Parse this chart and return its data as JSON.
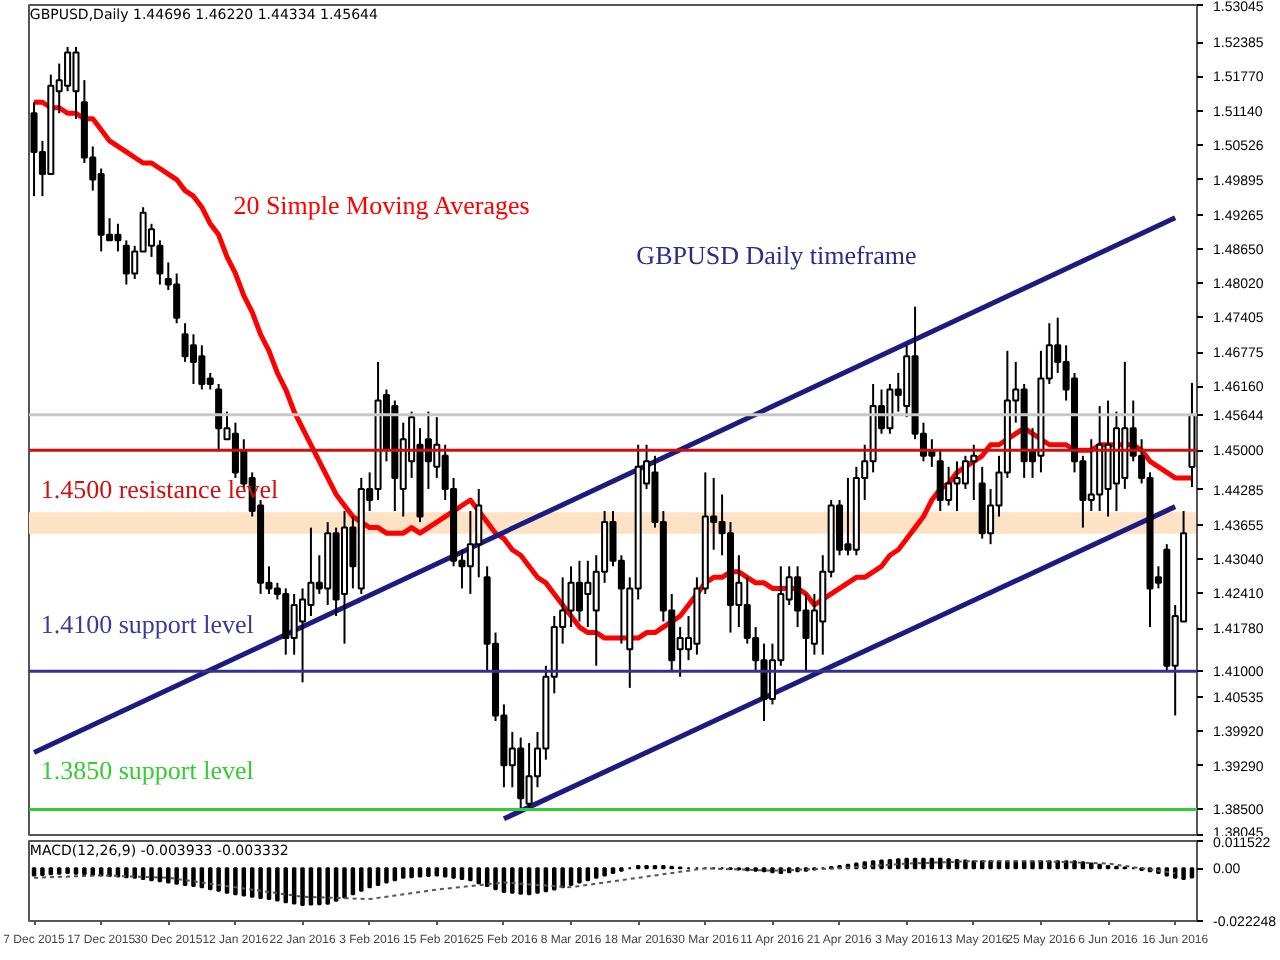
{
  "chart_data": [
    {
      "type": "candlestick",
      "title": "GBPUSD,Daily 1.44696 1.46220 1.44334 1.45644",
      "categories": [
        "7 Dec 2015",
        null,
        null,
        null,
        null,
        null,
        null,
        null,
        "17 Dec 2015",
        null,
        null,
        null,
        null,
        null,
        null,
        null,
        "30 Dec 2015",
        null,
        null,
        null,
        null,
        null,
        null,
        null,
        "12 Jan 2016",
        null,
        null,
        null,
        null,
        null,
        null,
        null,
        "22 Jan 2016",
        null,
        null,
        null,
        null,
        null,
        null,
        null,
        "3 Feb 2016",
        null,
        null,
        null,
        null,
        null,
        null,
        null,
        "15 Feb 2016",
        null,
        null,
        null,
        null,
        null,
        null,
        null,
        "25 Feb 2016",
        null,
        null,
        null,
        null,
        null,
        null,
        null,
        "8 Mar 2016",
        null,
        null,
        null,
        null,
        null,
        null,
        null,
        "18 Mar 2016",
        null,
        null,
        null,
        null,
        null,
        null,
        null,
        "30 Mar 2016",
        null,
        null,
        null,
        null,
        null,
        null,
        null,
        "11 Apr 2016",
        null,
        null,
        null,
        null,
        null,
        null,
        null,
        "21 Apr 2016",
        null,
        null,
        null,
        null,
        null,
        null,
        null,
        "3 May 2016",
        null,
        null,
        null,
        null,
        null,
        null,
        null,
        "13 May 2016",
        null,
        null,
        null,
        null,
        null,
        null,
        null,
        "25 May 2016",
        null,
        null,
        null,
        null,
        null,
        null,
        null,
        "6 Jun 2016",
        null,
        null,
        null,
        null,
        null,
        null,
        null,
        "16 Jun 2016",
        null,
        null
      ],
      "ohlc": [
        [
          1.511,
          1.513,
          1.496,
          1.504
        ],
        [
          1.504,
          1.506,
          1.496,
          1.5
        ],
        [
          1.5,
          1.518,
          1.5,
          1.516
        ],
        [
          1.515,
          1.52,
          1.511,
          1.517
        ],
        [
          1.516,
          1.523,
          1.515,
          1.522
        ],
        [
          1.515,
          1.523,
          1.51,
          1.522
        ],
        [
          1.513,
          1.517,
          1.502,
          1.503
        ],
        [
          1.503,
          1.505,
          1.497,
          1.499
        ],
        [
          1.5,
          1.501,
          1.486,
          1.489
        ],
        [
          1.489,
          1.492,
          1.488,
          1.488
        ],
        [
          1.489,
          1.491,
          1.486,
          1.488
        ],
        [
          1.487,
          1.488,
          1.48,
          1.482
        ],
        [
          1.482,
          1.487,
          1.481,
          1.486
        ],
        [
          1.486,
          1.494,
          1.486,
          1.493
        ],
        [
          1.487,
          1.491,
          1.485,
          1.49
        ],
        [
          1.487,
          1.488,
          1.48,
          1.482
        ],
        [
          1.481,
          1.484,
          1.479,
          1.48
        ],
        [
          1.48,
          1.482,
          1.473,
          1.474
        ],
        [
          1.471,
          1.473,
          1.466,
          1.467
        ],
        [
          1.469,
          1.471,
          1.462,
          1.466
        ],
        [
          1.467,
          1.469,
          1.461,
          1.462
        ],
        [
          1.463,
          1.464,
          1.461,
          1.462
        ],
        [
          1.461,
          1.462,
          1.45,
          1.454
        ],
        [
          1.452,
          1.457,
          1.452,
          1.454
        ],
        [
          1.453,
          1.455,
          1.445,
          1.446
        ],
        [
          1.45,
          1.452,
          1.443,
          1.444
        ],
        [
          1.445,
          1.446,
          1.438,
          1.439
        ],
        [
          1.44,
          1.441,
          1.424,
          1.426
        ],
        [
          1.426,
          1.429,
          1.424,
          1.425
        ],
        [
          1.425,
          1.426,
          1.423,
          1.424
        ],
        [
          1.424,
          1.425,
          1.413,
          1.416
        ],
        [
          1.416,
          1.424,
          1.413,
          1.422
        ],
        [
          1.419,
          1.425,
          1.408,
          1.423
        ],
        [
          1.422,
          1.436,
          1.42,
          1.426
        ],
        [
          1.426,
          1.431,
          1.424,
          1.425
        ],
        [
          1.425,
          1.437,
          1.422,
          1.435
        ],
        [
          1.435,
          1.436,
          1.42,
          1.423
        ],
        [
          1.424,
          1.439,
          1.415,
          1.436
        ],
        [
          1.436,
          1.438,
          1.425,
          1.429
        ],
        [
          1.425,
          1.445,
          1.424,
          1.443
        ],
        [
          1.443,
          1.446,
          1.439,
          1.441
        ],
        [
          1.443,
          1.466,
          1.441,
          1.459
        ],
        [
          1.46,
          1.461,
          1.448,
          1.45
        ],
        [
          1.458,
          1.459,
          1.439,
          1.445
        ],
        [
          1.443,
          1.455,
          1.438,
          1.452
        ],
        [
          1.448,
          1.457,
          1.445,
          1.456
        ],
        [
          1.451,
          1.454,
          1.437,
          1.438
        ],
        [
          1.452,
          1.457,
          1.443,
          1.448
        ],
        [
          1.447,
          1.456,
          1.445,
          1.451
        ],
        [
          1.449,
          1.451,
          1.441,
          1.443
        ],
        [
          1.443,
          1.445,
          1.429,
          1.43
        ],
        [
          1.43,
          1.432,
          1.425,
          1.429
        ],
        [
          1.429,
          1.439,
          1.424,
          1.433
        ],
        [
          1.433,
          1.443,
          1.427,
          1.44
        ],
        [
          1.427,
          1.429,
          1.41,
          1.415
        ],
        [
          1.415,
          1.417,
          1.401,
          1.402
        ],
        [
          1.402,
          1.404,
          1.389,
          1.393
        ],
        [
          1.393,
          1.399,
          1.389,
          1.396
        ],
        [
          1.396,
          1.398,
          1.385,
          1.387
        ],
        [
          1.386,
          1.397,
          1.385,
          1.391
        ],
        [
          1.391,
          1.399,
          1.389,
          1.396
        ],
        [
          1.396,
          1.411,
          1.394,
          1.409
        ],
        [
          1.409,
          1.42,
          1.406,
          1.418
        ],
        [
          1.418,
          1.427,
          1.415,
          1.421
        ],
        [
          1.421,
          1.429,
          1.418,
          1.426
        ],
        [
          1.426,
          1.43,
          1.419,
          1.421
        ],
        [
          1.424,
          1.43,
          1.418,
          1.426
        ],
        [
          1.421,
          1.431,
          1.411,
          1.428
        ],
        [
          1.428,
          1.439,
          1.426,
          1.437
        ],
        [
          1.437,
          1.439,
          1.429,
          1.43
        ],
        [
          1.43,
          1.431,
          1.415,
          1.425
        ],
        [
          1.414,
          1.427,
          1.407,
          1.425
        ],
        [
          1.425,
          1.451,
          1.423,
          1.447
        ],
        [
          1.444,
          1.451,
          1.443,
          1.448
        ],
        [
          1.446,
          1.449,
          1.436,
          1.437
        ],
        [
          1.437,
          1.439,
          1.419,
          1.421
        ],
        [
          1.421,
          1.424,
          1.41,
          1.412
        ],
        [
          1.414,
          1.418,
          1.409,
          1.416
        ],
        [
          1.414,
          1.42,
          1.412,
          1.416
        ],
        [
          1.415,
          1.427,
          1.413,
          1.425
        ],
        [
          1.425,
          1.446,
          1.424,
          1.438
        ],
        [
          1.438,
          1.445,
          1.432,
          1.437
        ],
        [
          1.437,
          1.442,
          1.431,
          1.435
        ],
        [
          1.435,
          1.437,
          1.417,
          1.422
        ],
        [
          1.422,
          1.431,
          1.418,
          1.426
        ],
        [
          1.422,
          1.427,
          1.415,
          1.416
        ],
        [
          1.416,
          1.418,
          1.41,
          1.412
        ],
        [
          1.412,
          1.415,
          1.401,
          1.405
        ],
        [
          1.405,
          1.415,
          1.404,
          1.412
        ],
        [
          1.412,
          1.429,
          1.411,
          1.424
        ],
        [
          1.423,
          1.429,
          1.422,
          1.427
        ],
        [
          1.427,
          1.429,
          1.418,
          1.421
        ],
        [
          1.421,
          1.424,
          1.41,
          1.416
        ],
        [
          1.415,
          1.424,
          1.413,
          1.421
        ],
        [
          1.419,
          1.431,
          1.413,
          1.428
        ],
        [
          1.428,
          1.441,
          1.427,
          1.44
        ],
        [
          1.44,
          1.441,
          1.431,
          1.432
        ],
        [
          1.433,
          1.445,
          1.431,
          1.432
        ],
        [
          1.432,
          1.447,
          1.431,
          1.445
        ],
        [
          1.445,
          1.451,
          1.441,
          1.448
        ],
        [
          1.448,
          1.462,
          1.446,
          1.458
        ],
        [
          1.458,
          1.461,
          1.453,
          1.454
        ],
        [
          1.454,
          1.462,
          1.453,
          1.461
        ],
        [
          1.461,
          1.464,
          1.457,
          1.46
        ],
        [
          1.458,
          1.469,
          1.456,
          1.467
        ],
        [
          1.467,
          1.476,
          1.452,
          1.453
        ],
        [
          1.453,
          1.455,
          1.448,
          1.449
        ],
        [
          1.45,
          1.452,
          1.447,
          1.449
        ],
        [
          1.448,
          1.45,
          1.439,
          1.441
        ],
        [
          1.441,
          1.447,
          1.44,
          1.444
        ],
        [
          1.444,
          1.448,
          1.439,
          1.445
        ],
        [
          1.444,
          1.449,
          1.443,
          1.448
        ],
        [
          1.448,
          1.451,
          1.441,
          1.449
        ],
        [
          1.444,
          1.447,
          1.434,
          1.435
        ],
        [
          1.435,
          1.443,
          1.433,
          1.44
        ],
        [
          1.44,
          1.449,
          1.438,
          1.446
        ],
        [
          1.446,
          1.468,
          1.445,
          1.459
        ],
        [
          1.459,
          1.466,
          1.455,
          1.461
        ],
        [
          1.461,
          1.462,
          1.445,
          1.448
        ],
        [
          1.45,
          1.454,
          1.445,
          1.448
        ],
        [
          1.449,
          1.468,
          1.446,
          1.463
        ],
        [
          1.463,
          1.473,
          1.462,
          1.469
        ],
        [
          1.469,
          1.474,
          1.464,
          1.466
        ],
        [
          1.466,
          1.469,
          1.459,
          1.461
        ],
        [
          1.463,
          1.464,
          1.446,
          1.448
        ],
        [
          1.448,
          1.449,
          1.436,
          1.441
        ],
        [
          1.441,
          1.452,
          1.439,
          1.442
        ],
        [
          1.442,
          1.458,
          1.439,
          1.451
        ],
        [
          1.443,
          1.459,
          1.438,
          1.451
        ],
        [
          1.444,
          1.457,
          1.439,
          1.454
        ],
        [
          1.445,
          1.466,
          1.443,
          1.454
        ],
        [
          1.454,
          1.459,
          1.448,
          1.449
        ],
        [
          1.449,
          1.452,
          1.444,
          1.445
        ],
        [
          1.445,
          1.446,
          1.418,
          1.425
        ],
        [
          1.427,
          1.429,
          1.425,
          1.426
        ],
        [
          1.432,
          1.433,
          1.41,
          1.411
        ],
        [
          1.411,
          1.422,
          1.402,
          1.42
        ],
        [
          1.419,
          1.439,
          1.419,
          1.435
        ],
        [
          1.44696,
          1.4622,
          1.44334,
          1.45644
        ]
      ],
      "series": [
        {
          "type": "line",
          "color": "#ff0000",
          "values": [
            1.513,
            1.513,
            1.512,
            1.512,
            1.511,
            1.511,
            1.51,
            1.51,
            1.508,
            1.506,
            1.505,
            1.504,
            1.503,
            1.502,
            1.502,
            1.501,
            1.5,
            1.499,
            1.497,
            1.496,
            1.494,
            1.491,
            1.489,
            1.485,
            1.482,
            1.478,
            1.475,
            1.471,
            1.468,
            1.464,
            1.461,
            1.457,
            1.454,
            1.451,
            1.448,
            1.445,
            1.442,
            1.44,
            1.438,
            1.437,
            1.436,
            1.436,
            1.435,
            1.435,
            1.435,
            1.436,
            1.435,
            1.436,
            1.437,
            1.438,
            1.439,
            1.44,
            1.441,
            1.439,
            1.437,
            1.435,
            1.434,
            1.432,
            1.431,
            1.429,
            1.427,
            1.426,
            1.424,
            1.422,
            1.42,
            1.418,
            1.417,
            1.417,
            1.416,
            1.416,
            1.416,
            1.416,
            1.416,
            1.417,
            1.417,
            1.418,
            1.419,
            1.42,
            1.422,
            1.424,
            1.426,
            1.427,
            1.427,
            1.428,
            1.428,
            1.427,
            1.426,
            1.426,
            1.425,
            1.425,
            1.425,
            1.425,
            1.424,
            1.422,
            1.423,
            1.424,
            1.425,
            1.426,
            1.427,
            1.427,
            1.428,
            1.429,
            1.431,
            1.432,
            1.434,
            1.436,
            1.438,
            1.441,
            1.443,
            1.444,
            1.446,
            1.447,
            1.448,
            1.449,
            1.451,
            1.451,
            1.452,
            1.453,
            1.454,
            1.453,
            1.452,
            1.451,
            1.451,
            1.451,
            1.45,
            1.45,
            1.45,
            1.451,
            1.451,
            1.451,
            1.451,
            1.451,
            1.45,
            1.448,
            1.447,
            1.446,
            1.445,
            1.445,
            1.445
          ]
        },
        {
          "type": "line",
          "color": "#1c1c80",
          "x": [
            "7 Dec 2015",
            "16 Jun 2016"
          ],
          "values": [
            1.3953,
            1.4921
          ]
        },
        {
          "type": "line",
          "color": "#1c1c80",
          "x": [
            "25 Feb 2016",
            "16 Jun 2016"
          ],
          "values": [
            1.3833,
            1.4398
          ]
        }
      ],
      "ylim": [
        1.38,
        1.5306
      ],
      "yticks": [
        1.53045,
        1.52385,
        {
          "value": 1.5177,
          "label": "1.51770"
        },
        {
          "value": 1.5114,
          "label": "1.51140"
        },
        1.50526,
        1.49895,
        1.49265,
        {
          "value": 1.4865,
          "label": "1.48650"
        },
        {
          "value": 1.4802,
          "label": "1.48020"
        },
        1.47405,
        1.46775,
        {
          "value": 1.4616,
          "label": "1.46160"
        },
        1.45644,
        {
          "value": 1.45,
          "label": "1.45000"
        },
        1.44285,
        1.43655,
        {
          "value": 1.4304,
          "label": "1.43040"
        },
        {
          "value": 1.4241,
          "label": "1.42410"
        },
        {
          "value": 1.4178,
          "label": "1.41780"
        },
        {
          "value": 1.41,
          "label": "1.41000"
        },
        1.40535,
        {
          "value": 1.3992,
          "label": "1.39920"
        },
        {
          "value": 1.3929,
          "label": "1.39290"
        },
        {
          "value": 1.385,
          "label": "1.38500"
        },
        1.38045
      ],
      "bands": [
        {
          "axis": "y",
          "from": 1.4349,
          "to": 1.4388,
          "color": "#fde2c6"
        }
      ],
      "ref_lines": [
        {
          "axis": "y",
          "value": 1.45644,
          "color": "#c8c8c8"
        },
        {
          "axis": "y",
          "value": 1.45,
          "color": "#cc1010"
        },
        {
          "axis": "y",
          "value": 1.41,
          "color": "#33338f"
        },
        {
          "axis": "y",
          "value": 1.385,
          "color": "#33cc33"
        }
      ],
      "annotations": [
        "20 Simple Moving Averages",
        "GBPUSD Daily timeframe",
        "1.4500 resistance level",
        "1.4100 support level",
        "1.3850 support level"
      ],
      "tick_labels": "y"
    },
    {
      "type": "bar",
      "title": "MACD(12,26,9) -0.003933 -0.003332",
      "categories": [
        "7 Dec 2015",
        null,
        null,
        null,
        null,
        null,
        null,
        null,
        "17 Dec 2015",
        null,
        null,
        null,
        null,
        null,
        null,
        null,
        "30 Dec 2015",
        null,
        null,
        null,
        null,
        null,
        null,
        null,
        "12 Jan 2016",
        null,
        null,
        null,
        null,
        null,
        null,
        null,
        "22 Jan 2016",
        null,
        null,
        null,
        null,
        null,
        null,
        null,
        "3 Feb 2016",
        null,
        null,
        null,
        null,
        null,
        null,
        null,
        "15 Feb 2016",
        null,
        null,
        null,
        null,
        null,
        null,
        null,
        "25 Feb 2016",
        null,
        null,
        null,
        null,
        null,
        null,
        null,
        "8 Mar 2016",
        null,
        null,
        null,
        null,
        null,
        null,
        null,
        "18 Mar 2016",
        null,
        null,
        null,
        null,
        null,
        null,
        null,
        "30 Mar 2016",
        null,
        null,
        null,
        null,
        null,
        null,
        null,
        "11 Apr 2016",
        null,
        null,
        null,
        null,
        null,
        null,
        null,
        "21 Apr 2016",
        null,
        null,
        null,
        null,
        null,
        null,
        null,
        "3 May 2016",
        null,
        null,
        null,
        null,
        null,
        null,
        null,
        "13 May 2016",
        null,
        null,
        null,
        null,
        null,
        null,
        null,
        "25 May 2016",
        null,
        null,
        null,
        null,
        null,
        null,
        null,
        "6 Jun 2016",
        null,
        null,
        null,
        null,
        null,
        null,
        null,
        "16 Jun 2016",
        null,
        null
      ],
      "series": [
        {
          "type": "bar",
          "color": "#000000",
          "values": [
            -0.003,
            -0.0028,
            -0.0025,
            -0.0023,
            -0.002,
            -0.0023,
            -0.0025,
            -0.0028,
            -0.003,
            -0.0033,
            -0.0035,
            -0.0038,
            -0.004,
            -0.0045,
            -0.005,
            -0.0055,
            -0.006,
            -0.0065,
            -0.007,
            -0.0075,
            -0.008,
            -0.0088,
            -0.0095,
            -0.0103,
            -0.011,
            -0.0115,
            -0.012,
            -0.0125,
            -0.013,
            -0.0136,
            -0.0143,
            -0.0149,
            -0.0155,
            -0.0153,
            -0.0152,
            -0.015,
            -0.0137,
            -0.0123,
            -0.011,
            -0.0095,
            -0.008,
            -0.007,
            -0.006,
            -0.005,
            -0.004,
            -0.0038,
            -0.0035,
            -0.0033,
            -0.003,
            -0.0035,
            -0.004,
            -0.0045,
            -0.005,
            -0.0063,
            -0.0075,
            -0.0088,
            -0.01,
            -0.0103,
            -0.0107,
            -0.011,
            -0.0103,
            -0.0097,
            -0.009,
            -0.008,
            -0.007,
            -0.006,
            -0.005,
            -0.004,
            -0.003,
            -0.002,
            -0.001,
            0.0,
            0.001,
            0.001,
            0.001,
            0.001,
            0.0007,
            0.0003,
            0.0,
            0.0,
            0.0,
            0.0,
            0.0,
            -0.0003,
            -0.0005,
            -0.0008,
            -0.001,
            -0.0013,
            -0.0017,
            -0.002,
            -0.0017,
            -0.0013,
            -0.001,
            -0.0005,
            0.0,
            0.0005,
            0.001,
            0.0015,
            0.002,
            0.0025,
            0.003,
            0.0033,
            0.0035,
            0.0038,
            0.004,
            0.004,
            0.004,
            0.004,
            0.004,
            0.0038,
            0.0035,
            0.0033,
            0.003,
            0.003,
            0.003,
            0.003,
            0.003,
            0.003,
            0.003,
            0.003,
            0.003,
            0.003,
            0.003,
            0.003,
            0.003,
            0.0025,
            0.002,
            0.0015,
            0.001,
            0.0007,
            0.0003,
            0.0,
            -0.0007,
            -0.0013,
            -0.002,
            -0.003,
            -0.004,
            -0.0045,
            -0.003933
          ]
        },
        {
          "type": "line",
          "color": "#555555",
          "line_style": "dotted",
          "x": [
            "7 Dec 2015",
            "17 Dec 2015",
            "30 Dec 2015",
            "12 Jan 2016",
            "22 Jan 2016",
            "3 Feb 2016",
            "15 Feb 2016",
            "25 Feb 2016",
            "8 Mar 2016",
            "18 Mar 2016",
            "30 Mar 2016",
            "11 Apr 2016",
            "21 Apr 2016",
            "3 May 2016",
            "13 May 2016",
            "25 May 2016",
            "6 Jun 2016",
            "16 Jun 2016"
          ],
          "values": [
            -0.004,
            -0.003,
            -0.004,
            -0.008,
            -0.012,
            -0.013,
            -0.009,
            -0.006,
            -0.008,
            -0.004,
            0.0,
            -0.001,
            0.0,
            0.002,
            0.003,
            0.003,
            0.002,
            -0.002
          ]
        }
      ],
      "ylim": [
        -0.022248,
        0.011522
      ],
      "yticks": [
        0.011522,
        {
          "value": 0,
          "label": "0.00"
        },
        -0.022248
      ]
    }
  ]
}
